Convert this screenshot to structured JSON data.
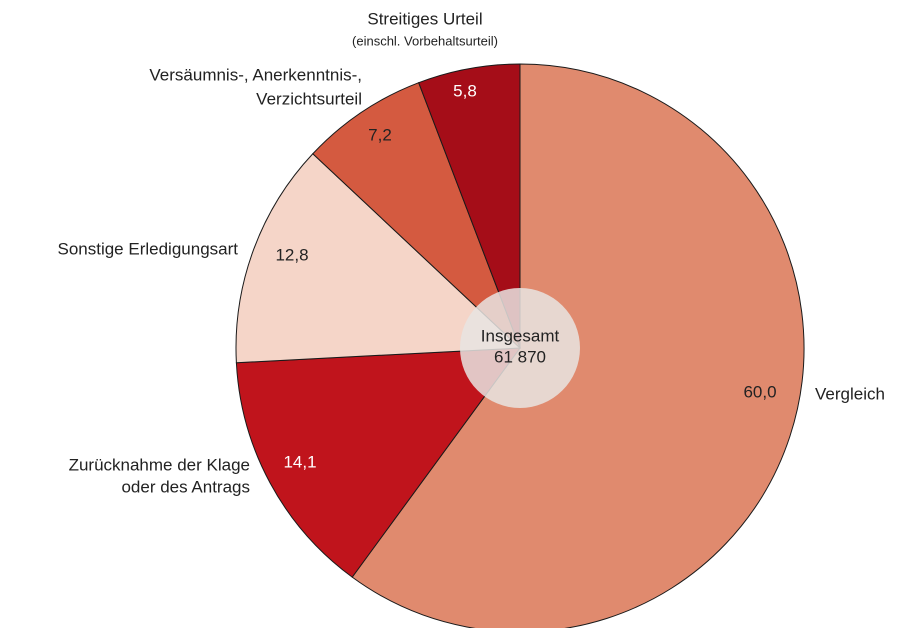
{
  "chart_data": {
    "type": "pie",
    "categories": [
      [
        "Vergleich"
      ],
      [
        "Zurücknahme der Klage",
        "oder des Antrags"
      ],
      [
        "Sonstige Erledigungsart"
      ],
      [
        "Versäumnis-, Anerkenntnis-,",
        "Verzichtsurteil"
      ],
      [
        "Streitiges Urteil",
        "(einschl. Vorbehaltsurteil)"
      ]
    ],
    "values": [
      60.0,
      14.1,
      12.8,
      7.2,
      5.8
    ],
    "value_labels": [
      "60,0",
      "14,1",
      "12,8",
      "7,2",
      "5,8"
    ],
    "colors": [
      "#e08a6e",
      "#c0141c",
      "#f5d5c8",
      "#d45a40",
      "#a50d18"
    ],
    "center_label": "Insgesamt",
    "total": {
      "value": 61870,
      "label": "61 870"
    }
  }
}
